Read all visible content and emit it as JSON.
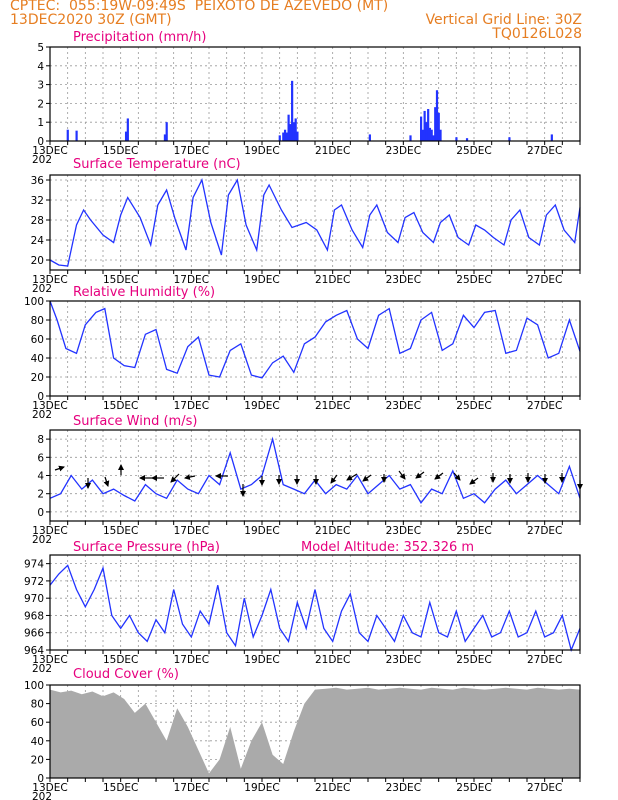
{
  "header": {
    "line1_left": "CPTEC:  055:19W-09:49S  PEIXOTO DE AZEVEDO (MT)",
    "line2_left": "13DEC2020 30Z (GMT)",
    "line2_right": "Vertical Grid Line: 30Z",
    "line3_right": "TQ0126L028"
  },
  "colors": {
    "header": "#e67e22",
    "title": "#e6007e",
    "line": "#2233ff",
    "cloud": "#aaaaaa"
  },
  "day_labels": [
    "13DEC",
    "15DEC",
    "17DEC",
    "19DEC",
    "21DEC",
    "23DEC",
    "25DEC",
    "27DEC"
  ],
  "year_stub": "202",
  "pressure_extra": "Model Altitude: 352.326 m",
  "chart_data": [
    {
      "id": "precip",
      "type": "bar",
      "title": "Precipitation (mm/h)",
      "ylim": [
        0,
        5
      ],
      "yticks": [
        0,
        1,
        2,
        3,
        4,
        5
      ],
      "x_range_days": [
        0,
        15
      ],
      "grid": true,
      "x": [
        0.5,
        0.75,
        2.15,
        2.2,
        3.25,
        3.3,
        6.5,
        6.6,
        6.65,
        6.7,
        6.75,
        6.8,
        6.85,
        6.9,
        6.95,
        7.0,
        9.05,
        10.2,
        10.5,
        10.55,
        10.6,
        10.65,
        10.7,
        10.75,
        10.8,
        10.85,
        10.9,
        10.95,
        11.0,
        11.05,
        11.5,
        11.8,
        13.0,
        14.2
      ],
      "values": [
        0.6,
        0.55,
        0.5,
        1.2,
        0.35,
        1.0,
        0.3,
        0.45,
        0.6,
        0.45,
        1.4,
        0.9,
        3.2,
        1.0,
        1.2,
        0.5,
        0.35,
        0.3,
        1.3,
        0.6,
        1.6,
        1.0,
        1.7,
        0.7,
        0.6,
        0.3,
        1.8,
        2.7,
        1.5,
        0.6,
        0.2,
        0.15,
        0.2,
        0.35
      ]
    },
    {
      "id": "temp",
      "type": "line",
      "title": "Surface Temperature (nC)",
      "ylim": [
        18,
        37
      ],
      "yticks": [
        20,
        24,
        28,
        32,
        36
      ],
      "x_range_days": [
        0,
        15
      ],
      "grid": true,
      "x": [
        0,
        0.25,
        0.5,
        0.75,
        0.95,
        1.15,
        1.5,
        1.8,
        2.0,
        2.2,
        2.55,
        2.85,
        3.05,
        3.3,
        3.55,
        3.85,
        4.05,
        4.3,
        4.55,
        4.85,
        5.05,
        5.3,
        5.55,
        5.85,
        6.05,
        6.2,
        6.55,
        6.85,
        7.05,
        7.25,
        7.55,
        7.85,
        8.05,
        8.25,
        8.55,
        8.85,
        9.05,
        9.25,
        9.55,
        9.85,
        10.05,
        10.3,
        10.55,
        10.85,
        11.05,
        11.3,
        11.55,
        11.85,
        12.05,
        12.3,
        12.55,
        12.85,
        13.05,
        13.3,
        13.55,
        13.85,
        14.05,
        14.3,
        14.55,
        14.85,
        15.0
      ],
      "values": [
        20,
        19,
        18.8,
        27,
        30,
        28,
        25,
        23.5,
        29,
        32.5,
        28.5,
        23,
        31,
        34,
        28,
        22,
        32.5,
        36,
        27.5,
        21,
        33,
        36,
        27,
        22,
        33,
        35,
        30,
        26.5,
        27,
        27.5,
        26,
        22,
        30,
        31,
        26,
        22.5,
        29,
        31,
        25.5,
        23.5,
        28.5,
        29.5,
        25.5,
        23.5,
        27.5,
        29,
        24.5,
        23,
        27,
        26,
        24.5,
        23,
        28,
        30,
        24.5,
        23,
        29,
        31,
        26,
        23.5,
        30.5
      ]
    },
    {
      "id": "rh",
      "type": "line",
      "title": "Relative Humidity (%)",
      "ylim": [
        0,
        100
      ],
      "yticks": [
        0,
        20,
        40,
        60,
        80,
        100
      ],
      "x_range_days": [
        0,
        15
      ],
      "grid": true,
      "x": [
        0,
        0.2,
        0.45,
        0.75,
        1.0,
        1.3,
        1.55,
        1.8,
        2.1,
        2.4,
        2.7,
        3.0,
        3.3,
        3.6,
        3.9,
        4.2,
        4.5,
        4.8,
        5.1,
        5.4,
        5.7,
        6.0,
        6.3,
        6.6,
        6.9,
        7.2,
        7.5,
        7.8,
        8.1,
        8.4,
        8.7,
        9.0,
        9.3,
        9.6,
        9.9,
        10.2,
        10.5,
        10.8,
        11.1,
        11.4,
        11.7,
        12.0,
        12.3,
        12.6,
        12.9,
        13.2,
        13.5,
        13.8,
        14.1,
        14.4,
        14.7,
        15.0
      ],
      "values": [
        100,
        80,
        50,
        45,
        75,
        88,
        92,
        40,
        32,
        30,
        65,
        70,
        28,
        24,
        52,
        62,
        22,
        20,
        48,
        55,
        22,
        19,
        35,
        42,
        25,
        55,
        62,
        78,
        85,
        90,
        60,
        50,
        85,
        92,
        45,
        50,
        80,
        88,
        48,
        55,
        85,
        72,
        88,
        90,
        45,
        48,
        82,
        75,
        40,
        45,
        80,
        47
      ]
    },
    {
      "id": "wind",
      "type": "line",
      "title": "Surface Wind (m/s)",
      "ylim": [
        -1,
        9
      ],
      "yticks": [
        0,
        2,
        4,
        6,
        8
      ],
      "x_range_days": [
        0,
        15
      ],
      "grid": true,
      "x": [
        0,
        0.3,
        0.6,
        0.9,
        1.2,
        1.5,
        1.8,
        2.1,
        2.4,
        2.7,
        3.0,
        3.3,
        3.6,
        3.9,
        4.2,
        4.5,
        4.8,
        5.1,
        5.4,
        5.7,
        6.0,
        6.3,
        6.6,
        6.9,
        7.2,
        7.5,
        7.8,
        8.1,
        8.4,
        8.7,
        9.0,
        9.3,
        9.6,
        9.9,
        10.2,
        10.5,
        10.8,
        11.1,
        11.4,
        11.7,
        12.0,
        12.3,
        12.6,
        12.9,
        13.2,
        13.5,
        13.8,
        14.1,
        14.4,
        14.7,
        15.0
      ],
      "values": [
        1.5,
        2,
        4,
        2.5,
        3.5,
        2,
        2.5,
        1.8,
        1.2,
        3,
        2,
        1.5,
        3.5,
        2.5,
        2,
        4,
        3,
        6.5,
        2.5,
        3,
        4,
        8,
        3,
        2.5,
        2,
        3.5,
        2,
        3,
        2.5,
        4,
        2,
        3,
        4,
        2.5,
        3,
        1,
        2.5,
        2,
        4.5,
        1.5,
        2,
        1,
        2.5,
        3.5,
        2,
        3,
        4,
        3,
        2,
        5,
        1.5
      ]
    },
    {
      "id": "pressure",
      "type": "line",
      "title": "Surface Pressure (hPa)",
      "ylim": [
        964,
        975
      ],
      "yticks": [
        964,
        966,
        968,
        970,
        972,
        974
      ],
      "x_range_days": [
        0,
        15
      ],
      "grid": true,
      "x": [
        0,
        0.25,
        0.5,
        0.75,
        1.0,
        1.25,
        1.5,
        1.75,
        2.0,
        2.25,
        2.5,
        2.75,
        3.0,
        3.25,
        3.5,
        3.75,
        4.0,
        4.25,
        4.5,
        4.75,
        5.0,
        5.25,
        5.5,
        5.75,
        6.0,
        6.25,
        6.5,
        6.75,
        7.0,
        7.25,
        7.5,
        7.75,
        8.0,
        8.25,
        8.5,
        8.75,
        9.0,
        9.25,
        9.5,
        9.75,
        10.0,
        10.25,
        10.5,
        10.75,
        11.0,
        11.25,
        11.5,
        11.75,
        12.0,
        12.25,
        12.5,
        12.75,
        13.0,
        13.25,
        13.5,
        13.75,
        14.0,
        14.25,
        14.5,
        14.75,
        15.0
      ],
      "values": [
        971.5,
        972.8,
        973.8,
        971,
        969,
        971,
        973.5,
        968,
        966.5,
        968,
        966,
        965,
        967.5,
        966,
        971,
        967,
        965.5,
        968.5,
        967,
        971.5,
        966,
        964.5,
        970,
        965.5,
        968,
        971,
        966.5,
        965,
        969.5,
        966.5,
        971,
        966.5,
        965,
        968.5,
        970.5,
        966,
        965,
        968,
        966.5,
        965,
        968,
        966,
        965.5,
        969.5,
        966,
        965.5,
        968.5,
        965,
        966.5,
        968,
        965.5,
        966,
        968.5,
        965.5,
        966,
        968.5,
        965.5,
        966,
        968,
        964,
        966.5
      ]
    },
    {
      "id": "cloud",
      "type": "area",
      "title": "Cloud Cover (%)",
      "ylim": [
        0,
        100
      ],
      "yticks": [
        0,
        20,
        40,
        60,
        80,
        100
      ],
      "x_range_days": [
        0,
        15
      ],
      "grid": true,
      "x": [
        0,
        0.3,
        0.6,
        0.9,
        1.2,
        1.5,
        1.8,
        2.1,
        2.4,
        2.7,
        3.0,
        3.3,
        3.6,
        3.9,
        4.2,
        4.5,
        4.8,
        5.1,
        5.4,
        5.7,
        6.0,
        6.3,
        6.6,
        6.9,
        7.2,
        7.5,
        7.8,
        8.1,
        8.4,
        8.7,
        9.0,
        9.3,
        9.6,
        9.9,
        10.2,
        10.5,
        10.8,
        11.1,
        11.4,
        11.7,
        12.0,
        12.3,
        12.6,
        12.9,
        13.2,
        13.5,
        13.8,
        14.1,
        14.4,
        14.7,
        15.0
      ],
      "values": [
        95,
        92,
        94,
        90,
        93,
        88,
        92,
        85,
        70,
        80,
        60,
        40,
        75,
        55,
        30,
        5,
        20,
        55,
        10,
        40,
        60,
        25,
        15,
        50,
        80,
        95,
        96,
        97,
        95,
        96,
        97,
        95,
        96,
        97,
        96,
        95,
        97,
        96,
        95,
        97,
        96,
        95,
        96,
        97,
        96,
        95,
        97,
        96,
        95,
        96,
        95
      ]
    }
  ]
}
